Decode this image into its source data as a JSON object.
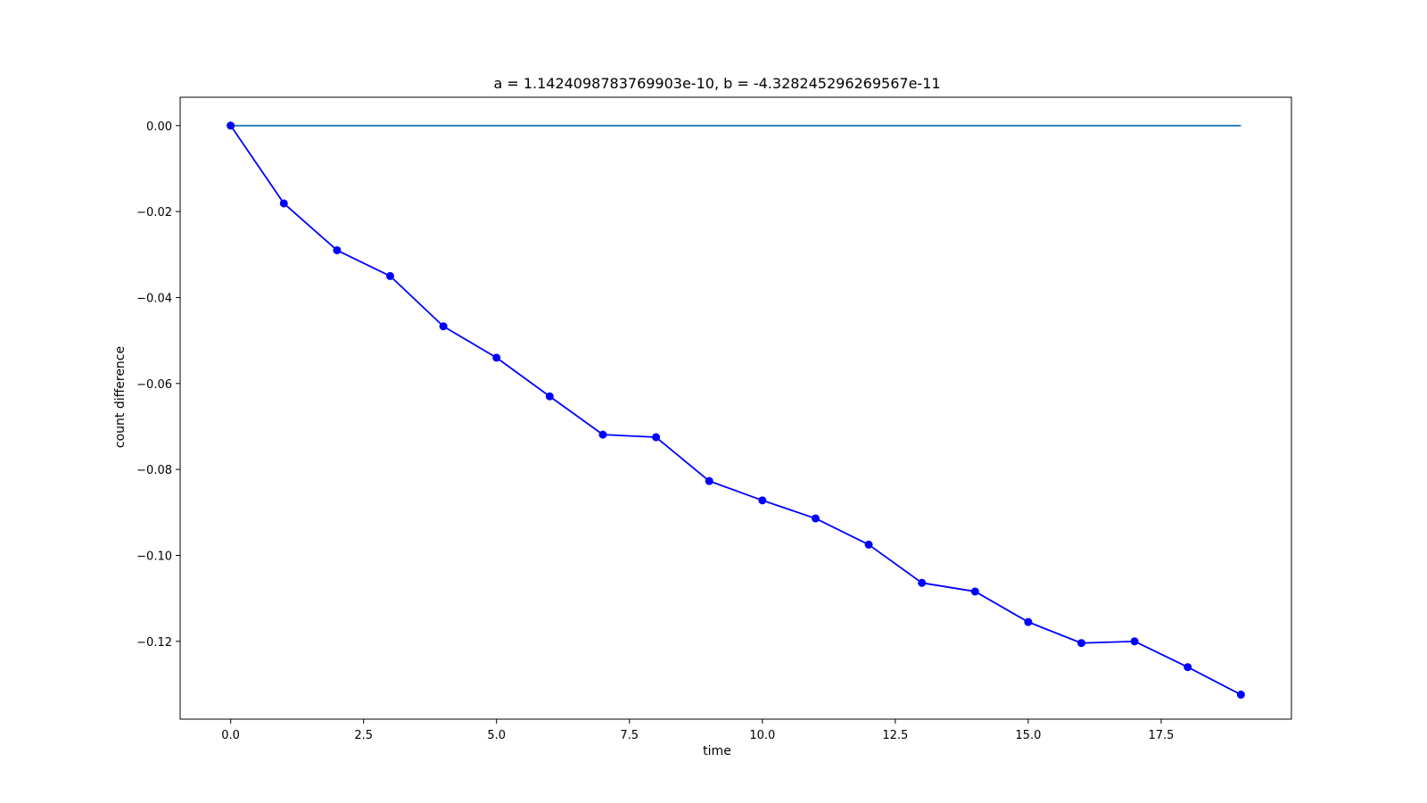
{
  "chart_data": {
    "type": "line",
    "title": "a = 1.1424098783769903e-10, b = -4.328245296269567e-11",
    "xlabel": "time",
    "ylabel": "count difference",
    "xlim": [
      -0.95,
      19.95
    ],
    "ylim": [
      -0.1381,
      0.0066
    ],
    "x_ticks": [
      0.0,
      2.5,
      5.0,
      7.5,
      10.0,
      12.5,
      15.0,
      17.5
    ],
    "x_tick_labels": [
      "0.0",
      "2.5",
      "5.0",
      "7.5",
      "10.0",
      "12.5",
      "15.0",
      "17.5"
    ],
    "y_ticks": [
      0.0,
      -0.02,
      -0.04,
      -0.06,
      -0.08,
      -0.1,
      -0.12
    ],
    "y_tick_labels": [
      "0.00",
      "−0.02",
      "−0.04",
      "−0.06",
      "−0.08",
      "−0.10",
      "−0.12"
    ],
    "grid": false,
    "legend": "none",
    "series": [
      {
        "x": [
          0,
          19
        ],
        "y": [
          0.0,
          0.0
        ],
        "color": "#1f77b4",
        "marker": "none"
      },
      {
        "x": [
          0,
          1,
          2,
          3,
          4,
          5,
          6,
          7,
          8,
          9,
          10,
          11,
          12,
          13,
          14,
          15,
          16,
          17,
          18,
          19
        ],
        "y": [
          0.0,
          -0.0181,
          -0.029,
          -0.035,
          -0.0467,
          -0.054,
          -0.063,
          -0.0719,
          -0.0725,
          -0.0827,
          -0.0872,
          -0.0914,
          -0.0975,
          -0.1064,
          -0.1084,
          -0.1155,
          -0.1204,
          -0.12,
          -0.126,
          -0.1324
        ],
        "color": "#0000ff",
        "marker": "circle"
      }
    ]
  }
}
